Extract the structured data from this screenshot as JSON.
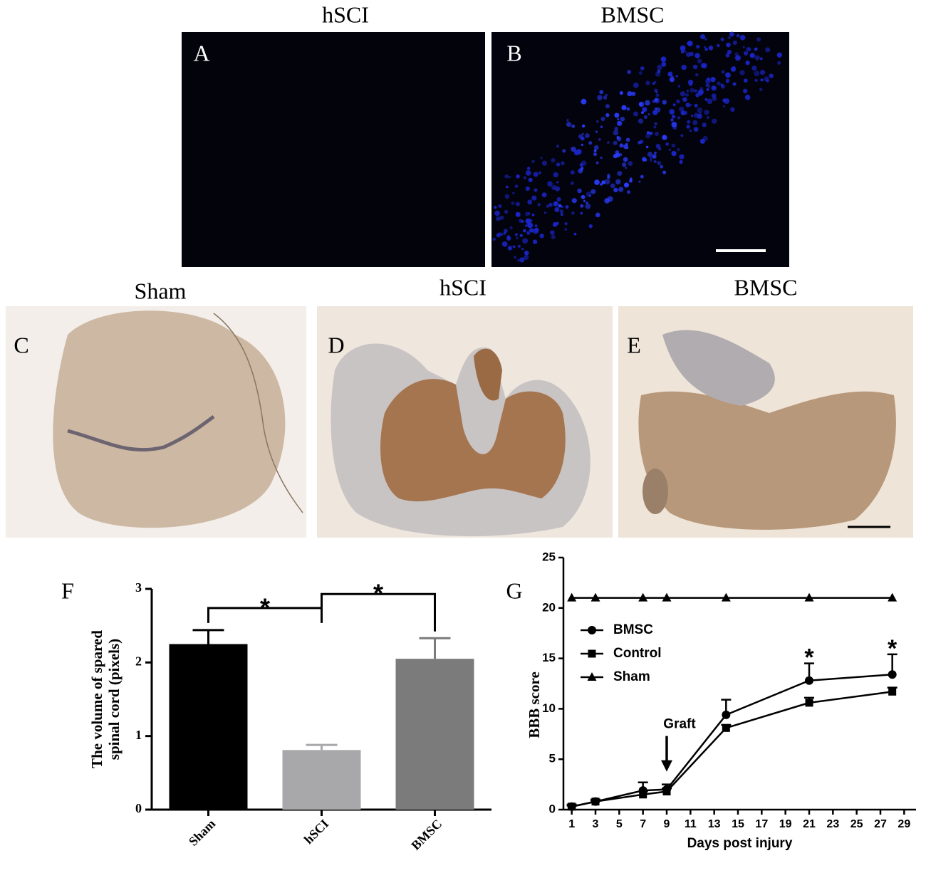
{
  "figure": {
    "panels": [
      {
        "label": "A",
        "title": "hSCI"
      },
      {
        "label": "B",
        "title": "BMSC"
      },
      {
        "label": "C",
        "title": "Sham"
      },
      {
        "label": "D",
        "title": "hSCI"
      },
      {
        "label": "E",
        "title": "BMSC"
      }
    ]
  },
  "chart_data": [
    {
      "type": "bar",
      "panel": "F",
      "categories": [
        "Sham",
        "hSCI",
        "BMSC"
      ],
      "values": [
        2.25,
        0.81,
        2.05
      ],
      "errors": [
        0.19,
        0.07,
        0.28
      ],
      "colors": [
        "#000000",
        "#a8a8ab",
        "#7b7b7b"
      ],
      "ylabel": [
        "The volume of spared",
        "spinal cord (pixels)"
      ],
      "ylim": [
        0,
        3
      ],
      "yticks": [
        0,
        1,
        2,
        3
      ],
      "significance": [
        {
          "between": [
            "Sham",
            "hSCI"
          ],
          "label": "*"
        },
        {
          "between": [
            "hSCI",
            "BMSC"
          ],
          "label": "*"
        }
      ]
    },
    {
      "type": "line",
      "panel": "G",
      "x": [
        1,
        3,
        7,
        9,
        14,
        21,
        28
      ],
      "series": [
        {
          "name": "BMSC",
          "color": "#000000",
          "marker": "circle",
          "values": [
            0.3,
            0.8,
            1.9,
            2.0,
            9.4,
            12.8,
            13.4
          ],
          "errors": [
            0.2,
            0.2,
            0.8,
            0.5,
            1.5,
            1.7,
            2.0
          ]
        },
        {
          "name": "Control",
          "color": "#000000",
          "marker": "square",
          "values": [
            0.3,
            0.8,
            1.5,
            1.8,
            8.1,
            10.6,
            11.7
          ],
          "errors": [
            0.1,
            0.1,
            0.3,
            0.3,
            0.3,
            0.5,
            0.4
          ]
        },
        {
          "name": "Sham",
          "color": "#000000",
          "marker": "triangle",
          "values": [
            21,
            21,
            21,
            21,
            21,
            21,
            21
          ]
        }
      ],
      "xlabel": "Days post injury",
      "ylabel": "BBB score",
      "xlim": [
        0.3,
        30
      ],
      "xticks": [
        1,
        3,
        5,
        7,
        9,
        11,
        13,
        15,
        17,
        19,
        21,
        23,
        25,
        27,
        29
      ],
      "ylim": [
        0,
        25
      ],
      "yticks": [
        0,
        5,
        10,
        15,
        20,
        25
      ],
      "legend": "upper left",
      "annotations": [
        {
          "x": 9,
          "text": "Graft",
          "arrow": true
        },
        {
          "x": 21,
          "text": "*"
        },
        {
          "x": 28,
          "text": "*"
        }
      ]
    }
  ]
}
